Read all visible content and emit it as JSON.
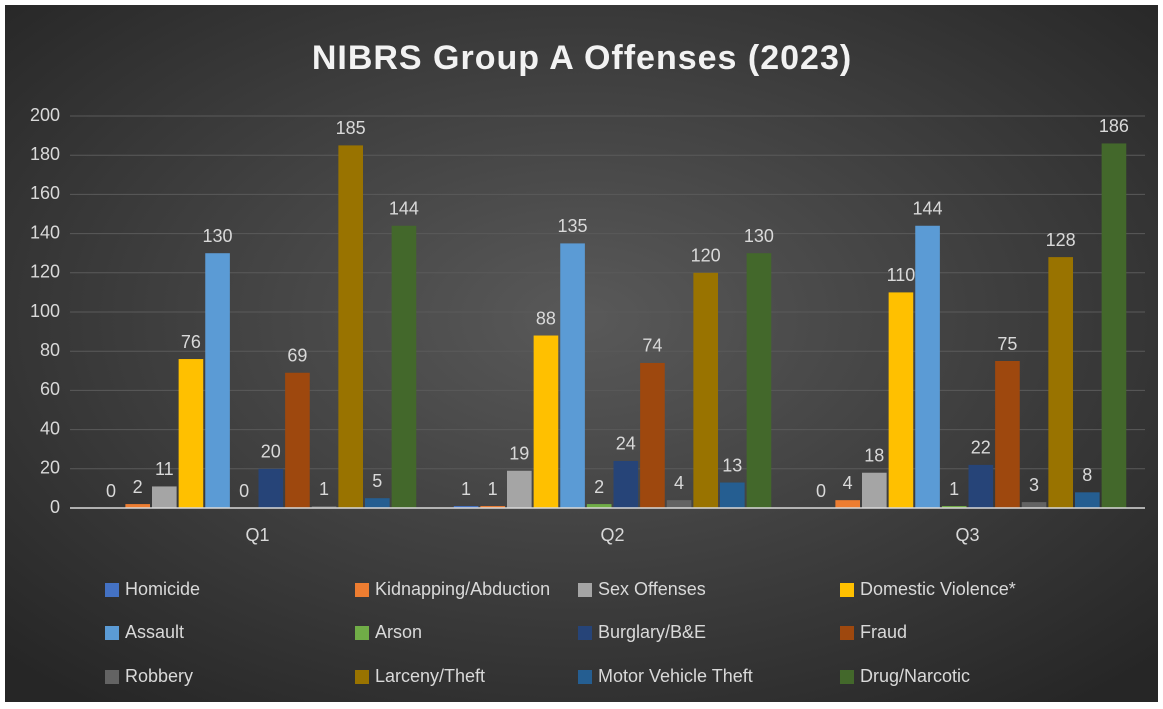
{
  "chart_data": {
    "type": "bar",
    "title": "NIBRS Group A Offenses (2023)",
    "categories": [
      "Q1",
      "Q2",
      "Q3"
    ],
    "series": [
      {
        "name": "Homicide",
        "color": "#4472c4",
        "values": [
          0,
          1,
          0
        ]
      },
      {
        "name": "Kidnapping/Abduction",
        "color": "#ed7d31",
        "values": [
          2,
          1,
          4
        ]
      },
      {
        "name": "Sex Offenses",
        "color": "#a5a5a5",
        "values": [
          11,
          19,
          18
        ]
      },
      {
        "name": "Domestic Violence*",
        "color": "#ffc000",
        "values": [
          76,
          88,
          110
        ]
      },
      {
        "name": "Assault",
        "color": "#5b9bd5",
        "values": [
          130,
          135,
          144
        ]
      },
      {
        "name": "Arson",
        "color": "#70ad47",
        "values": [
          0,
          2,
          1
        ]
      },
      {
        "name": "Burglary/B&E",
        "color": "#264478",
        "values": [
          20,
          24,
          22
        ]
      },
      {
        "name": "Fraud",
        "color": "#9e480e",
        "values": [
          69,
          74,
          75
        ]
      },
      {
        "name": "Robbery",
        "color": "#636363",
        "values": [
          1,
          4,
          3
        ]
      },
      {
        "name": "Larceny/Theft",
        "color": "#997300",
        "values": [
          185,
          120,
          128
        ]
      },
      {
        "name": "Motor Vehicle Theft",
        "color": "#255e91",
        "values": [
          5,
          13,
          8
        ]
      },
      {
        "name": "Drug/Narcotic",
        "color": "#43682b",
        "values": [
          144,
          130,
          186
        ]
      }
    ],
    "ylim": [
      0,
      200
    ],
    "yticks": [
      0,
      20,
      40,
      60,
      80,
      100,
      120,
      140,
      160,
      180,
      200
    ],
    "grid": true,
    "legend": "bottom"
  }
}
